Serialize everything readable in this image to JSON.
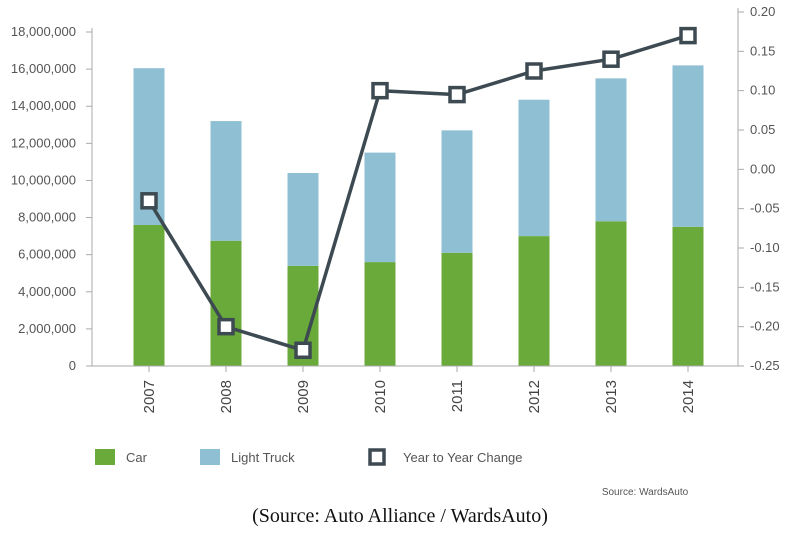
{
  "chart_data": {
    "type": "bar",
    "stacked": true,
    "categories": [
      "2007",
      "2008",
      "2009",
      "2010",
      "2011",
      "2012",
      "2013",
      "2014"
    ],
    "series": [
      {
        "name": "Car",
        "kind": "bar",
        "axis": "left",
        "color": "#6aaa3a",
        "values": [
          7600000,
          6750000,
          5400000,
          5600000,
          6100000,
          7000000,
          7800000,
          7500000
        ]
      },
      {
        "name": "Light Truck",
        "kind": "bar",
        "axis": "left",
        "color": "#8fbfd3",
        "values": [
          8450000,
          6450000,
          5000000,
          5900000,
          6600000,
          7350000,
          7700000,
          8700000
        ]
      },
      {
        "name": "Year to Year Change",
        "kind": "line",
        "axis": "right",
        "color": "#3d4a52",
        "values": [
          -0.04,
          -0.2,
          -0.23,
          0.1,
          0.095,
          0.125,
          0.14,
          0.17
        ]
      }
    ],
    "left_axis": {
      "ylim": [
        0,
        18000000
      ],
      "ticks": [
        "0",
        "2,000,000",
        "4,000,000",
        "6,000,000",
        "8,000,000",
        "10,000,000",
        "12,000,000",
        "14,000,000",
        "16,000,000",
        "18,000,000"
      ]
    },
    "right_axis": {
      "ylim": [
        -0.25,
        0.2
      ],
      "ticks": [
        "-0.25",
        "-0.20",
        "-0.15",
        "-0.10",
        "-0.05",
        "0.00",
        "0.05",
        "0.10",
        "0.15",
        "0.20"
      ]
    },
    "grid": false,
    "legend_position": "bottom",
    "source_note": "Source: WardsAuto"
  },
  "caption": "(Source: Auto Alliance / WardsAuto)"
}
